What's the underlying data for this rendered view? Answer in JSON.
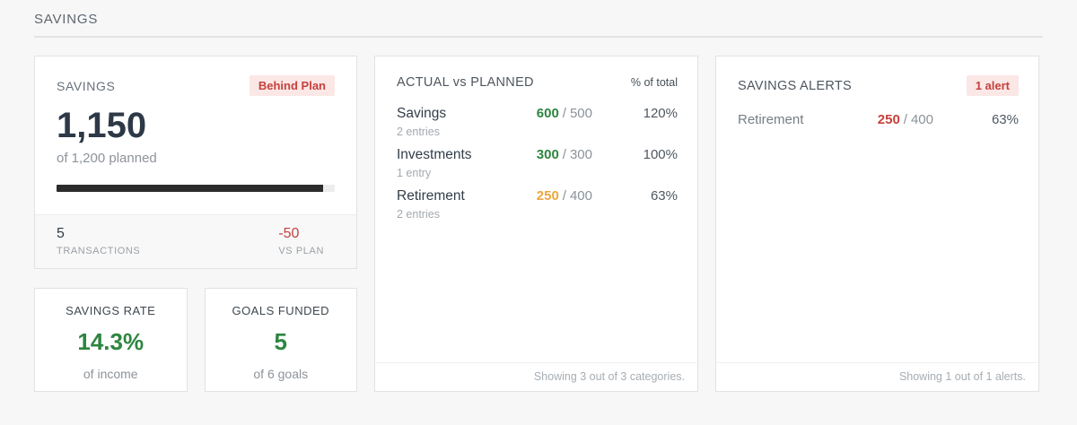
{
  "page": {
    "title": "SAVINGS"
  },
  "ui": {
    "separator": "/"
  },
  "colors": {
    "accent_green": "#2e8540",
    "accent_amber": "#eca63f",
    "accent_red": "#c5413c",
    "badge_bg": "#fbe7e6",
    "progress_fill": "#2b2b2b",
    "page_bg": "#f7f7f7"
  },
  "summary_card": {
    "label": "SAVINGS",
    "badge": "Behind Plan",
    "value": "1,150",
    "subtitle": "of 1,200 planned",
    "progress_pct": 95.8,
    "stats": [
      {
        "value": "5",
        "label": "TRANSACTIONS"
      },
      {
        "value": "-50",
        "label": "VS PLAN"
      }
    ]
  },
  "mini_cards": [
    {
      "title": "SAVINGS RATE",
      "value": "14.3%",
      "subtitle": "of income"
    },
    {
      "title": "GOALS FUNDED",
      "value": "5",
      "subtitle": "of 6 goals"
    }
  ],
  "actual_vs_planned": {
    "title": "ACTUAL vs PLANNED",
    "column_header": "% of total",
    "rows": [
      {
        "name": "Savings",
        "entries": "2 entries",
        "actual": "600",
        "planned": "500",
        "pct": "120%"
      },
      {
        "name": "Investments",
        "entries": "1 entry",
        "actual": "300",
        "planned": "300",
        "pct": "100%"
      },
      {
        "name": "Retirement",
        "entries": "2 entries",
        "actual": "250",
        "planned": "400",
        "pct": "63%"
      }
    ],
    "footer": "Showing 3 out of 3 categories."
  },
  "alerts_card": {
    "title": "SAVINGS ALERTS",
    "badge": "1 alert",
    "rows": [
      {
        "name": "Retirement",
        "actual": "250",
        "planned": "400",
        "pct": "63%"
      }
    ],
    "footer": "Showing 1 out of 1 alerts."
  }
}
